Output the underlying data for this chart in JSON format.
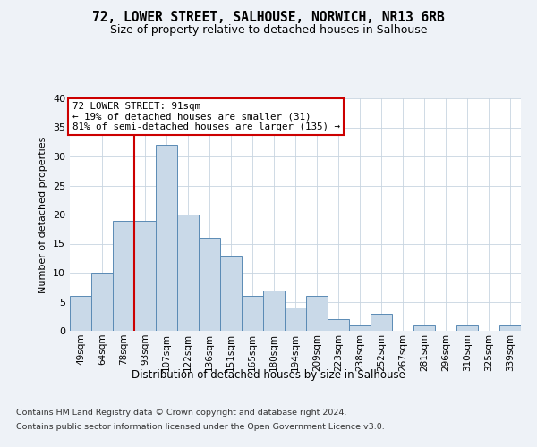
{
  "title": "72, LOWER STREET, SALHOUSE, NORWICH, NR13 6RB",
  "subtitle": "Size of property relative to detached houses in Salhouse",
  "xlabel": "Distribution of detached houses by size in Salhouse",
  "ylabel": "Number of detached properties",
  "bar_labels": [
    "49sqm",
    "64sqm",
    "78sqm",
    "93sqm",
    "107sqm",
    "122sqm",
    "136sqm",
    "151sqm",
    "165sqm",
    "180sqm",
    "194sqm",
    "209sqm",
    "223sqm",
    "238sqm",
    "252sqm",
    "267sqm",
    "281sqm",
    "296sqm",
    "310sqm",
    "325sqm",
    "339sqm"
  ],
  "bar_values": [
    6,
    10,
    19,
    19,
    32,
    20,
    16,
    13,
    6,
    7,
    4,
    6,
    2,
    1,
    3,
    0,
    1,
    0,
    1,
    0,
    1
  ],
  "bar_color": "#c9d9e8",
  "bar_edgecolor": "#5a8ab5",
  "vline_x_idx": 3,
  "vline_color": "#cc0000",
  "annotation_text": "72 LOWER STREET: 91sqm\n← 19% of detached houses are smaller (31)\n81% of semi-detached houses are larger (135) →",
  "annotation_box_edgecolor": "#cc0000",
  "annotation_box_facecolor": "#ffffff",
  "ylim": [
    0,
    40
  ],
  "yticks": [
    0,
    5,
    10,
    15,
    20,
    25,
    30,
    35,
    40
  ],
  "footer_line1": "Contains HM Land Registry data © Crown copyright and database right 2024.",
  "footer_line2": "Contains public sector information licensed under the Open Government Licence v3.0.",
  "bg_color": "#eef2f7",
  "plot_bg_color": "#ffffff",
  "grid_color": "#c8d4e0"
}
